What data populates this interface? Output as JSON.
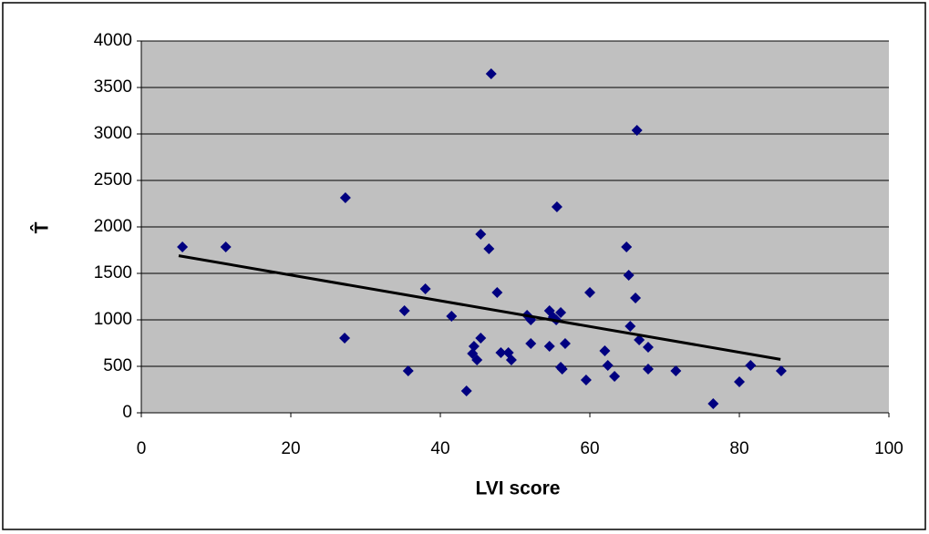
{
  "chart_data": {
    "type": "scatter",
    "x_label": "LVI score",
    "y_label": "T̂",
    "x": [
      5.5,
      11.3,
      27.3,
      27.2,
      35.2,
      35.7,
      38.0,
      41.5,
      43.5,
      44.3,
      44.5,
      44.9,
      45.4,
      45.4,
      46.5,
      46.8,
      47.6,
      48.1,
      49.1,
      49.5,
      51.6,
      52.1,
      52.1,
      54.6,
      54.6,
      55.1,
      55.5,
      55.6,
      56.1,
      56.1,
      56.3,
      56.7,
      59.5,
      60.0,
      62.0,
      62.4,
      63.3,
      64.9,
      65.2,
      65.4,
      66.1,
      66.3,
      66.6,
      67.8,
      67.8,
      71.5,
      76.5,
      80.0,
      81.5,
      85.6
    ],
    "values": [
      1784,
      1784,
      2314,
      804,
      1098,
      451,
      1333,
      1039,
      235,
      637,
      716,
      569,
      1922,
      804,
      1765,
      3647,
      1294,
      647,
      647,
      569,
      1049,
      1000,
      745,
      716,
      1098,
      1029,
      1000,
      2216,
      1078,
      490,
      471,
      745,
      353,
      1294,
      667,
      510,
      392,
      1784,
      1480,
      931,
      1235,
      3039,
      784,
      471,
      706,
      451,
      98,
      333,
      510,
      451
    ],
    "color": "#000080",
    "trendline": {
      "x": [
        5,
        85.5
      ],
      "values": [
        1690,
        575
      ],
      "color": "#000000"
    },
    "xlim": [
      0,
      100
    ],
    "xticks": [
      0,
      20,
      40,
      60,
      80,
      100
    ],
    "ylim": [
      0,
      4000
    ],
    "yticks": [
      0,
      500,
      1000,
      1500,
      2000,
      2500,
      3000,
      3500,
      4000
    ],
    "grid": true
  }
}
